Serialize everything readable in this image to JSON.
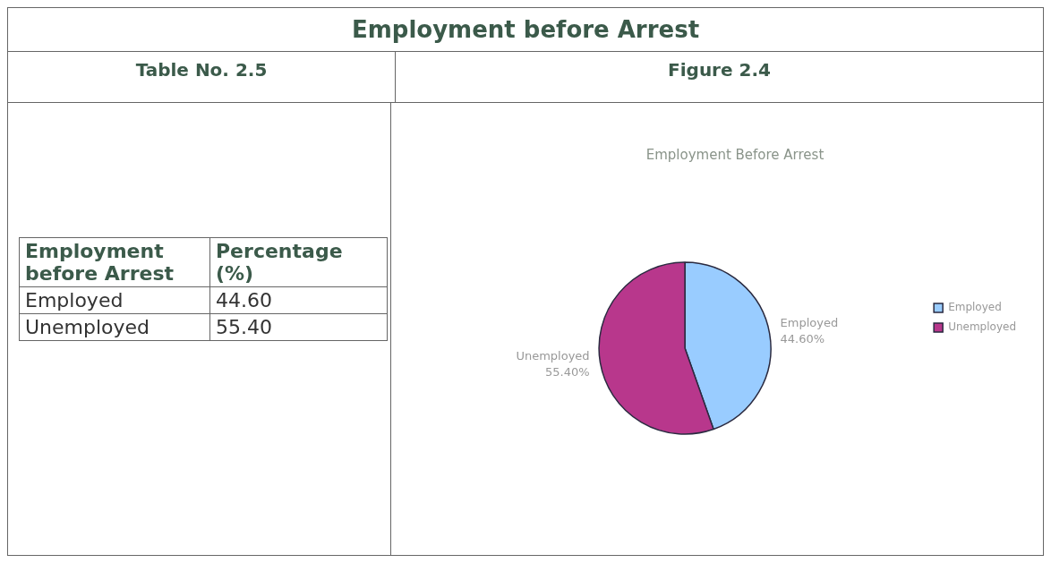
{
  "chart_data": {
    "type": "pie",
    "title": "Employment before Arrest",
    "subtitle": "Employment Before Arrest",
    "categories": [
      "Employed",
      "Unemployed"
    ],
    "values": [
      44.6,
      55.4
    ],
    "colors": [
      "#99ccff",
      "#b8378c"
    ],
    "value_labels": [
      "44.60%",
      "55.40%"
    ],
    "legend": "right",
    "annotations": [
      "Table No. 2.5",
      "Figure 2.4",
      "Employment before Arrest",
      "Percentage (%)",
      "44.60",
      "55.40"
    ]
  }
}
